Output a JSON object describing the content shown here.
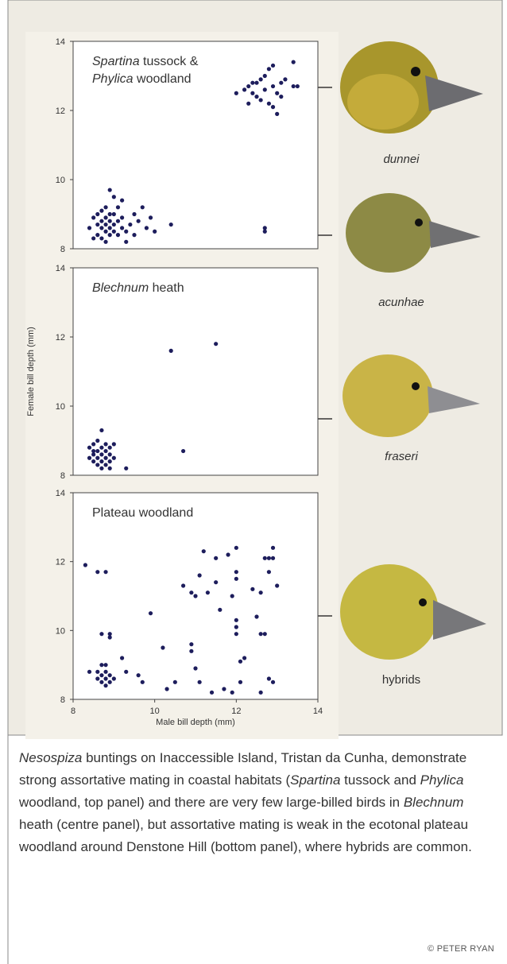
{
  "chart_data": [
    {
      "type": "scatter",
      "title": [
        [
          {
            "text": "Spartina",
            "italic": true
          },
          {
            "text": " tussock &"
          }
        ],
        [
          {
            "text": "Phylica",
            "italic": true
          },
          {
            "text": " woodland"
          }
        ]
      ],
      "xlim": [
        8,
        14
      ],
      "ylim": [
        8,
        14
      ],
      "yticks": [
        8,
        10,
        12,
        14
      ],
      "color": "#1d1d5c",
      "x": [
        12.0,
        12.2,
        12.3,
        12.4,
        12.5,
        12.6,
        12.7,
        12.8,
        12.9,
        12.5,
        12.6,
        12.7,
        12.8,
        12.9,
        13.0,
        13.0,
        13.1,
        13.2,
        13.4,
        13.4,
        13.5,
        12.4,
        12.3,
        13.1,
        12.9,
        8.4,
        8.5,
        8.6,
        8.6,
        8.6,
        8.7,
        8.7,
        8.7,
        8.7,
        8.8,
        8.8,
        8.8,
        8.8,
        8.9,
        8.9,
        8.9,
        8.9,
        8.9,
        9.0,
        9.0,
        9.0,
        9.0,
        9.1,
        9.1,
        9.1,
        9.2,
        9.2,
        9.3,
        9.3,
        9.4,
        9.5,
        9.5,
        9.6,
        9.7,
        9.8,
        9.9,
        10.0,
        8.5,
        8.8,
        9.2,
        10.4,
        12.7,
        12.7
      ],
      "values": [
        12.5,
        12.6,
        12.7,
        12.5,
        12.8,
        12.9,
        13.0,
        13.2,
        13.3,
        12.4,
        12.3,
        12.6,
        12.2,
        12.1,
        11.9,
        12.5,
        12.8,
        12.9,
        13.4,
        12.7,
        12.7,
        12.8,
        12.2,
        12.4,
        12.7,
        8.6,
        8.9,
        8.4,
        8.7,
        9.0,
        8.3,
        8.6,
        8.8,
        9.1,
        8.5,
        8.7,
        8.9,
        9.2,
        8.4,
        8.6,
        8.8,
        9.0,
        9.7,
        8.5,
        8.7,
        9.5,
        9.0,
        8.4,
        8.8,
        9.2,
        8.6,
        8.9,
        8.2,
        8.5,
        8.7,
        9.0,
        8.4,
        8.8,
        9.2,
        8.6,
        8.9,
        8.5,
        8.3,
        8.2,
        9.4,
        8.7,
        8.5,
        8.6
      ]
    },
    {
      "type": "scatter",
      "title": [
        [
          {
            "text": "Blechnum",
            "italic": true
          },
          {
            "text": " heath"
          }
        ]
      ],
      "ylabel": "Female bill depth (mm)",
      "xlim": [
        8,
        14
      ],
      "ylim": [
        8,
        14
      ],
      "yticks": [
        8,
        10,
        12,
        14
      ],
      "color": "#1d1d5c",
      "x": [
        10.4,
        11.5,
        10.7,
        9.3,
        8.4,
        8.4,
        8.5,
        8.5,
        8.5,
        8.6,
        8.6,
        8.6,
        8.6,
        8.7,
        8.7,
        8.7,
        8.7,
        8.7,
        8.8,
        8.8,
        8.8,
        8.8,
        8.9,
        8.9,
        8.9,
        9.0,
        9.0,
        8.5,
        8.9
      ],
      "values": [
        11.6,
        11.8,
        8.7,
        8.2,
        8.5,
        8.8,
        8.4,
        8.6,
        8.9,
        8.3,
        8.5,
        8.7,
        9.0,
        8.2,
        8.4,
        8.6,
        8.8,
        9.3,
        8.3,
        8.5,
        8.7,
        8.9,
        8.4,
        8.6,
        8.8,
        8.5,
        8.9,
        8.7,
        8.2
      ]
    },
    {
      "type": "scatter",
      "title": [
        [
          {
            "text": "Plateau woodland"
          }
        ]
      ],
      "xlabel": "Male bill depth (mm)",
      "xlim": [
        8,
        14
      ],
      "ylim": [
        8,
        14
      ],
      "xticks": [
        8,
        10,
        12,
        14
      ],
      "yticks": [
        8,
        10,
        12,
        14
      ],
      "color": "#1d1d5c",
      "x": [
        8.3,
        8.6,
        8.8,
        8.4,
        8.7,
        8.9,
        8.9,
        8.6,
        8.7,
        8.7,
        8.7,
        8.8,
        8.8,
        8.8,
        8.8,
        8.9,
        8.9,
        9.0,
        8.6,
        9.2,
        9.3,
        9.6,
        9.7,
        9.9,
        10.2,
        10.3,
        10.5,
        10.7,
        10.9,
        10.9,
        10.9,
        11.0,
        11.0,
        11.1,
        11.1,
        11.2,
        11.3,
        11.4,
        11.5,
        11.5,
        11.6,
        11.7,
        11.8,
        11.9,
        11.9,
        12.0,
        12.0,
        12.0,
        12.0,
        12.0,
        12.0,
        12.1,
        12.2,
        12.1,
        12.4,
        12.5,
        12.6,
        12.7,
        12.6,
        12.7,
        12.8,
        12.9,
        12.9,
        12.8,
        13.0,
        12.8,
        12.9,
        12.6
      ],
      "values": [
        11.9,
        11.7,
        11.7,
        8.8,
        9.9,
        9.8,
        9.9,
        8.6,
        8.5,
        8.7,
        9.0,
        8.4,
        8.6,
        8.8,
        9.0,
        8.5,
        8.7,
        8.6,
        8.8,
        9.2,
        8.8,
        8.7,
        8.5,
        10.5,
        9.5,
        8.3,
        8.5,
        11.3,
        11.1,
        9.6,
        9.4,
        11.0,
        8.9,
        11.6,
        8.5,
        12.3,
        11.1,
        8.2,
        12.1,
        11.4,
        10.6,
        8.3,
        12.2,
        11.0,
        8.2,
        12.4,
        11.7,
        11.5,
        10.3,
        10.1,
        9.9,
        9.1,
        9.2,
        8.5,
        11.2,
        10.4,
        9.9,
        9.9,
        11.1,
        12.1,
        12.1,
        12.4,
        12.1,
        11.7,
        11.3,
        8.6,
        8.5,
        8.2
      ]
    }
  ],
  "birds": [
    {
      "label": "dunnei",
      "italic": true
    },
    {
      "label": "acunhae",
      "italic": true
    },
    {
      "label": "fraseri",
      "italic": true
    },
    {
      "label": "hybrids"
    }
  ],
  "caption": [
    {
      "text": "Nesospiza",
      "italic": true
    },
    {
      "text": " buntings on Inaccessible Island, Tristan da Cunha, demonstrate strong assortative mating in coastal habitats ("
    },
    {
      "text": "Spartina",
      "italic": true
    },
    {
      "text": " tussock and "
    },
    {
      "text": "Phylica",
      "italic": true
    },
    {
      "text": " woodland, top panel) and there are very few large-billed birds in "
    },
    {
      "text": "Blechnum",
      "italic": true
    },
    {
      "text": " heath (centre panel), but assortative mating is weak in the ecotonal plateau woodland around Denstone Hill (bottom panel), where hybrids are common."
    }
  ],
  "credit": "© PETER RYAN"
}
